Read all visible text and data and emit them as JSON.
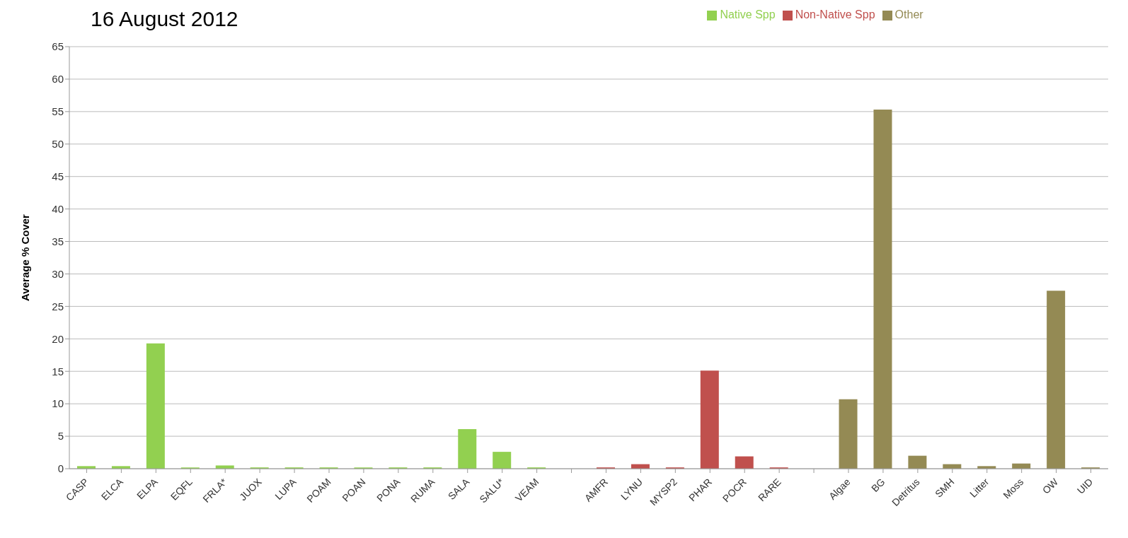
{
  "chart_data": {
    "type": "bar",
    "title": "16 August 2012",
    "ylabel": "Average % Cover",
    "categories": [
      "CASP",
      "ELCA",
      "ELPA",
      "EQFL",
      "FRLA*",
      "JUOX",
      "LUPA",
      "POAM",
      "POAN",
      "PONA",
      "RUMA",
      "SALA",
      "SALU*",
      "VEAM",
      null,
      "AMFR",
      "LYNU",
      "MYSP2",
      "PHAR",
      "POCR",
      "RARE",
      null,
      "Algae",
      "BG",
      "Detritus",
      "SMH",
      "Litter",
      "Moss",
      "OW",
      "UID"
    ],
    "stacked": true,
    "series": [
      {
        "name": "Native Spp",
        "color": "#92d050",
        "values": [
          0.4,
          0.4,
          19.3,
          0.2,
          0.5,
          0.2,
          0.2,
          0.2,
          0.2,
          0.2,
          0.2,
          6.1,
          2.6,
          0.2,
          null,
          null,
          null,
          null,
          null,
          null,
          null,
          null,
          null,
          null,
          null,
          null,
          null,
          null,
          null,
          null
        ]
      },
      {
        "name": "Non-Native Spp",
        "color": "#c0504d",
        "values": [
          null,
          null,
          null,
          null,
          null,
          null,
          null,
          null,
          null,
          null,
          null,
          null,
          null,
          null,
          null,
          0.2,
          0.7,
          0.2,
          15.1,
          1.9,
          0.2,
          null,
          null,
          null,
          null,
          null,
          null,
          null,
          null,
          null
        ]
      },
      {
        "name": "Other",
        "color": "#948a54",
        "values": [
          null,
          null,
          null,
          null,
          null,
          null,
          null,
          null,
          null,
          null,
          null,
          null,
          null,
          null,
          null,
          null,
          null,
          null,
          null,
          null,
          null,
          null,
          10.7,
          55.3,
          2.0,
          0.7,
          0.4,
          0.8,
          27.4,
          0.2
        ]
      }
    ],
    "ylim": [
      0,
      65
    ],
    "yticks": [
      0,
      5,
      10,
      15,
      20,
      25,
      30,
      35,
      40,
      45,
      50,
      55,
      60,
      65
    ],
    "grid": "y",
    "legend": "top"
  }
}
